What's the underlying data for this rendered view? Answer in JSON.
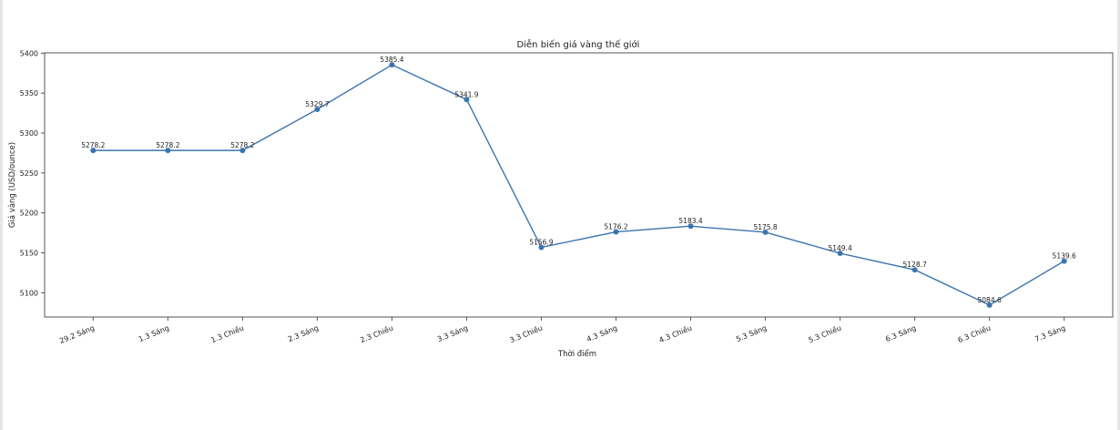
{
  "chart_data": {
    "type": "line",
    "title": "Diễn biến giá vàng thế giới",
    "xlabel": "Thời điểm",
    "ylabel": "Giá vàng (USD/ounce)",
    "categories": [
      "29.2 Sáng",
      "1.3 Sáng",
      "1.3 Chiều",
      "2.3 Sáng",
      "2.3 Chiều",
      "3.3 Sáng",
      "3.3 Chiều",
      "4.3 Sáng",
      "4.3 Chiều",
      "5.3 Sáng",
      "5.3 Chiều",
      "6.3 Sáng",
      "6.3 Chiều",
      "7.3 Sáng"
    ],
    "values": [
      5278.2,
      5278.2,
      5278.2,
      5329.7,
      5385.4,
      5341.9,
      5156.9,
      5176.2,
      5183.4,
      5175.8,
      5149.4,
      5128.7,
      5084.6,
      5139.6
    ],
    "data_labels": [
      "5278.2",
      "5278.2",
      "5278.2",
      "5329.7",
      "5385.4",
      "5341.9",
      "5156.9",
      "5176.2",
      "5183.4",
      "5175.8",
      "5149.4",
      "5128.7",
      "5084.6",
      "5139.6"
    ],
    "yticks": [
      "5100",
      "5150",
      "5200",
      "5250",
      "5300",
      "5350",
      "5400"
    ],
    "ylim": [
      5069.6,
      5400.4
    ],
    "grid": false,
    "marker": "circle",
    "color": "#3b75af"
  }
}
